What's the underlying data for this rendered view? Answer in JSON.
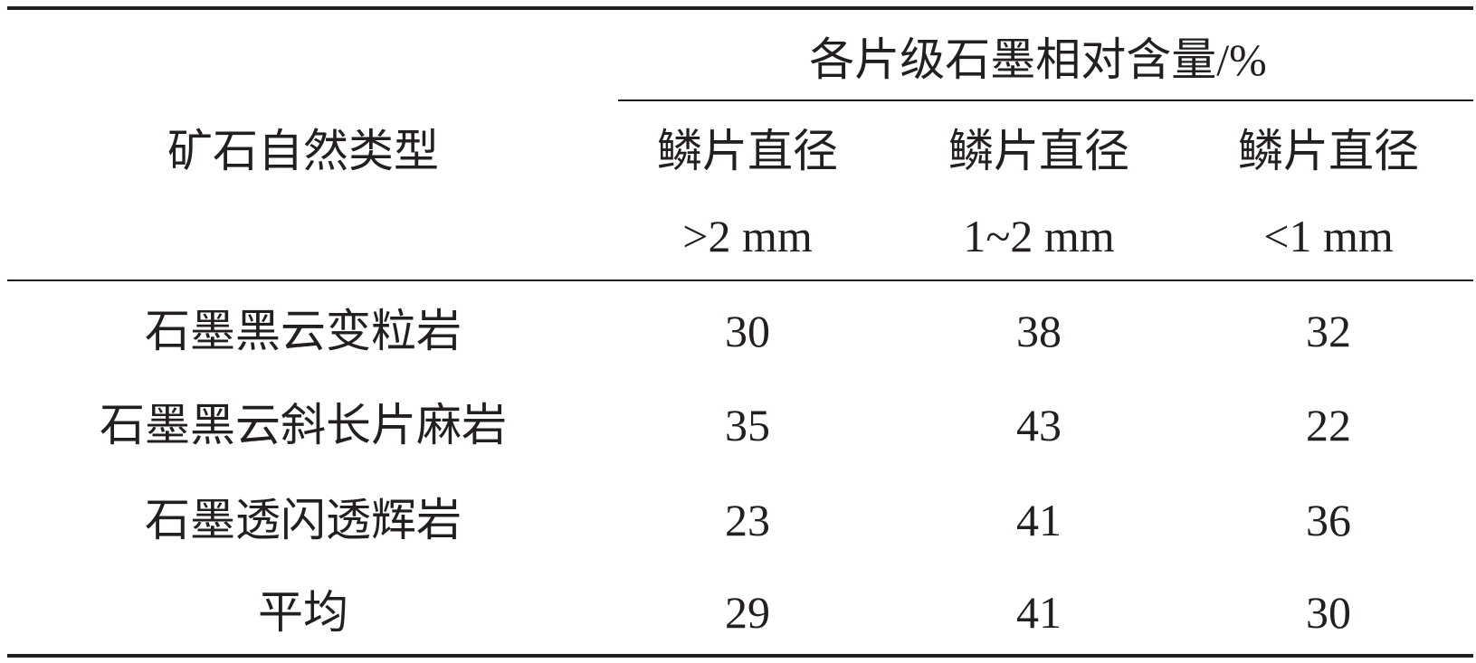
{
  "table": {
    "row_header": "矿石自然类型",
    "group_header": "各片级石墨相对含量/%",
    "columns": [
      {
        "label": "鳞片直径",
        "range": ">2 mm"
      },
      {
        "label": "鳞片直径",
        "range": "1~2 mm"
      },
      {
        "label": "鳞片直径",
        "range": "<1 mm"
      }
    ],
    "rows": [
      {
        "name": "石墨黑云变粒岩",
        "values": [
          "30",
          "38",
          "32"
        ]
      },
      {
        "name": "石墨黑云斜长片麻岩",
        "values": [
          "35",
          "43",
          "22"
        ]
      },
      {
        "name": "石墨透闪透辉岩",
        "values": [
          "23",
          "41",
          "36"
        ]
      },
      {
        "name": "平均",
        "values": [
          "29",
          "41",
          "30"
        ]
      }
    ]
  }
}
